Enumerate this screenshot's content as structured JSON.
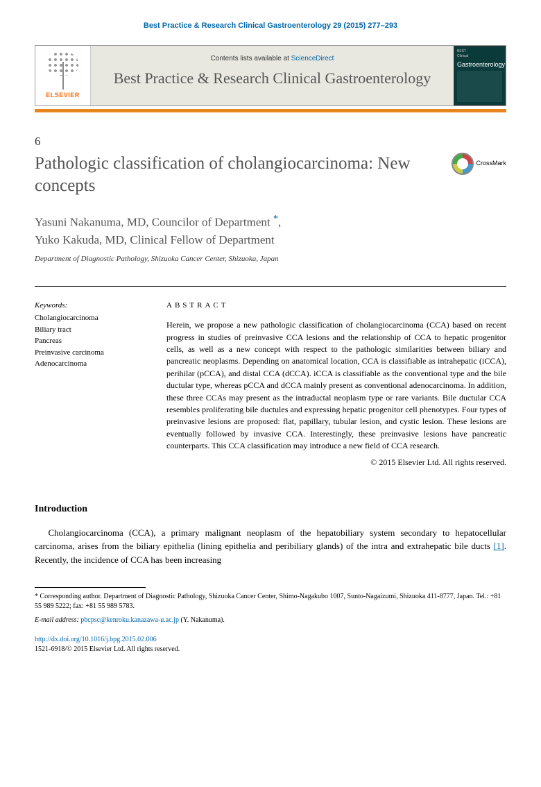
{
  "citation": "Best Practice & Research Clinical Gastroenterology 29 (2015) 277–293",
  "header": {
    "contents_prefix": "Contents lists available at ",
    "contents_link": "ScienceDirect",
    "journal_name": "Best Practice & Research Clinical Gastroenterology",
    "publisher": "ELSEVIER",
    "cover_top": "BEST",
    "cover_mid": "Clinical",
    "cover_main": "Gastroenterology"
  },
  "article": {
    "number": "6",
    "title": "Pathologic classification of cholangiocarcinoma: New concepts",
    "crossmark_label": "CrossMark",
    "authors_html": "Yasuni Nakanuma, MD, Councilor of Department *,\nYuko Kakuda, MD, Clinical Fellow of Department",
    "author1": "Yasuni Nakanuma, MD, Councilor of Department ",
    "author1_sup": "*",
    "author2": "Yuko Kakuda, MD, Clinical Fellow of Department",
    "affiliation": "Department of Diagnostic Pathology, Shizuoka Cancer Center, Shizuoka, Japan"
  },
  "keywords": {
    "heading": "Keywords:",
    "items": [
      "Cholangiocarcinoma",
      "Biliary tract",
      "Pancreas",
      "Preinvasive carcinoma",
      "Adenocarcinoma"
    ]
  },
  "abstract": {
    "heading": "ABSTRACT",
    "text": "Herein, we propose a new pathologic classification of cholangiocarcinoma (CCA) based on recent progress in studies of preinvasive CCA lesions and the relationship of CCA to hepatic progenitor cells, as well as a new concept with respect to the pathologic similarities between biliary and pancreatic neoplasms. Depending on anatomical location, CCA is classifiable as intrahepatic (iCCA), perihilar (pCCA), and distal CCA (dCCA). iCCA is classifiable as the conventional type and the bile ductular type, whereas pCCA and dCCA mainly present as conventional adenocarcinoma. In addition, these three CCAs may present as the intraductal neoplasm type or rare variants. Bile ductular CCA resembles proliferating bile ductules and expressing hepatic progenitor cell phenotypes. Four types of preinvasive lesions are proposed: flat, papillary, tubular lesion, and cystic lesion. These lesions are eventually followed by invasive CCA. Interestingly, these preinvasive lesions have pancreatic counterparts. This CCA classification may introduce a new field of CCA research.",
    "copyright": "© 2015 Elsevier Ltd. All rights reserved."
  },
  "intro": {
    "heading": "Introduction",
    "text_pre": "Cholangiocarcinoma (CCA), a primary malignant neoplasm of the hepatobiliary system secondary to hepatocellular carcinoma, arises from the biliary epithelia (lining epithelia and peribiliary glands) of the intra and extrahepatic bile ducts ",
    "ref": "[1]",
    "text_post": ". Recently, the incidence of CCA has been increasing"
  },
  "footnote": {
    "corresp": "* Corresponding author. Department of Diagnostic Pathology, Shizuoka Cancer Center, Shimo-Nagakubo 1007, Sunto-Nagaizumi, Shizuoka 411-8777, Japan. Tel.: +81 55 989 5222; fax: +81 55 989 5783.",
    "email_label": "E-mail address: ",
    "email": "pbcpsc@kenroku.kanazawa-u.ac.jp",
    "email_person": " (Y. Nakanuma)."
  },
  "doi": {
    "url": "http://dx.doi.org/10.1016/j.bpg.2015.02.006",
    "issn_line": "1521-6918/© 2015 Elsevier Ltd. All rights reserved."
  },
  "colors": {
    "link": "#0066aa",
    "accent_bar": "#e8861e",
    "publisher": "#ff6600",
    "heading_gray": "#555555"
  }
}
